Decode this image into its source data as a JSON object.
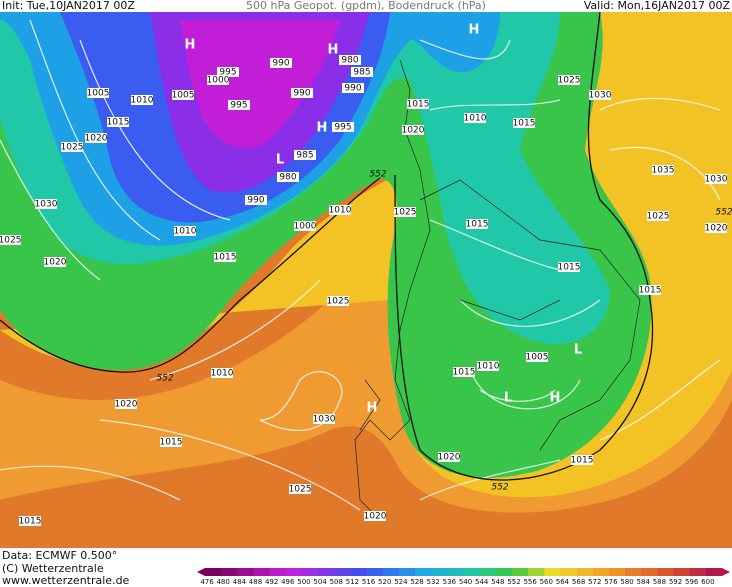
{
  "header": {
    "init": "Init: Tue,10JAN2017 00Z",
    "title": "500 hPa Geopot. (gpdm), Bodendruck (hPa)",
    "valid": "Valid: Mon,16JAN2017 00Z"
  },
  "footer": {
    "data": "Data: ECMWF   0.500°",
    "copyright": "(C) Wetterzentrale",
    "url": "www.wetterzentrale.de"
  },
  "color_scale": [
    476,
    480,
    484,
    488,
    492,
    496,
    500,
    504,
    508,
    512,
    516,
    520,
    524,
    528,
    532,
    536,
    540,
    544,
    548,
    552,
    556,
    560,
    564,
    568,
    572,
    576,
    580,
    584,
    588,
    592,
    596,
    600
  ],
  "isobar_labels": [
    1005,
    1010,
    1005,
    995,
    1000,
    990,
    980,
    985,
    990,
    990,
    995,
    995,
    985,
    980,
    990,
    1015,
    1020,
    1025,
    1030,
    1025,
    1020,
    1010,
    1015,
    1000,
    1010,
    1025,
    1025,
    1020,
    1015,
    1010,
    1015,
    1025,
    1030,
    1035,
    1030,
    1025,
    1020,
    1015,
    1015,
    1015,
    1005,
    1010,
    1015,
    1010,
    1020,
    1030,
    1015,
    1020,
    1015,
    1025,
    1020,
    1015
  ],
  "contour_552_labels": [
    552,
    552,
    552,
    552
  ],
  "pressure_centers": [
    "H",
    "H",
    "H",
    "H",
    "H",
    "H",
    "L",
    "L",
    "L"
  ]
}
